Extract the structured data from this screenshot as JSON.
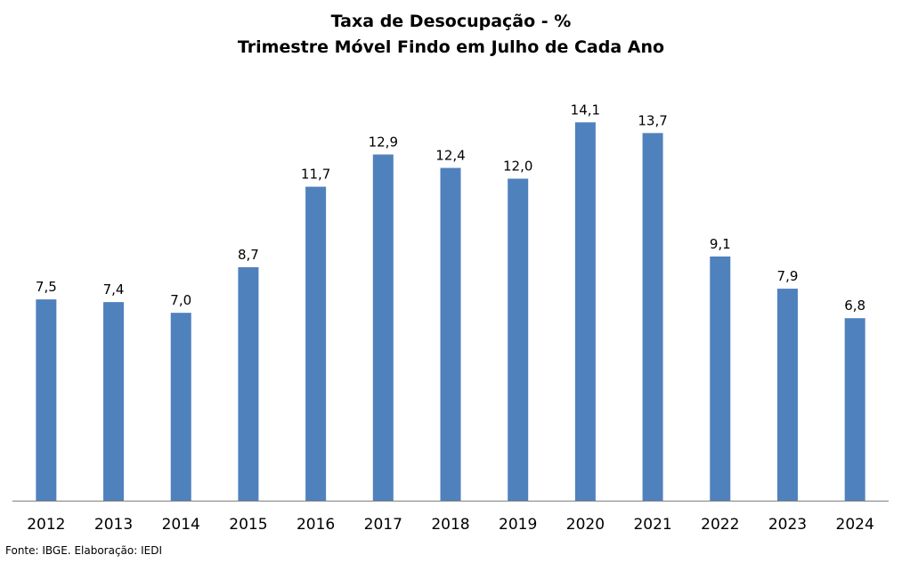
{
  "chart_data": {
    "type": "bar",
    "title": "Taxa de Desocupação - %",
    "subtitle": "Trimestre Móvel Findo em Julho de Cada Ano",
    "categories": [
      "2012",
      "2013",
      "2014",
      "2015",
      "2016",
      "2017",
      "2018",
      "2019",
      "2020",
      "2021",
      "2022",
      "2023",
      "2024"
    ],
    "values": [
      7.5,
      7.4,
      7.0,
      8.7,
      11.7,
      12.9,
      12.4,
      12.0,
      14.1,
      13.7,
      9.1,
      7.9,
      6.8
    ],
    "data_labels": [
      "7,5",
      "7,4",
      "7,0",
      "8,7",
      "11,7",
      "12,9",
      "12,4",
      "12,0",
      "14,1",
      "13,7",
      "9,1",
      "7,9",
      "6,8"
    ],
    "xlabel": "",
    "ylabel": "",
    "ylim": [
      0,
      15
    ],
    "grid": false,
    "legend": "none",
    "bar_color": "#4F81BD",
    "axis_color": "#7F7F7F"
  },
  "source": "Fonte: IBGE. Elaboração: IEDI"
}
